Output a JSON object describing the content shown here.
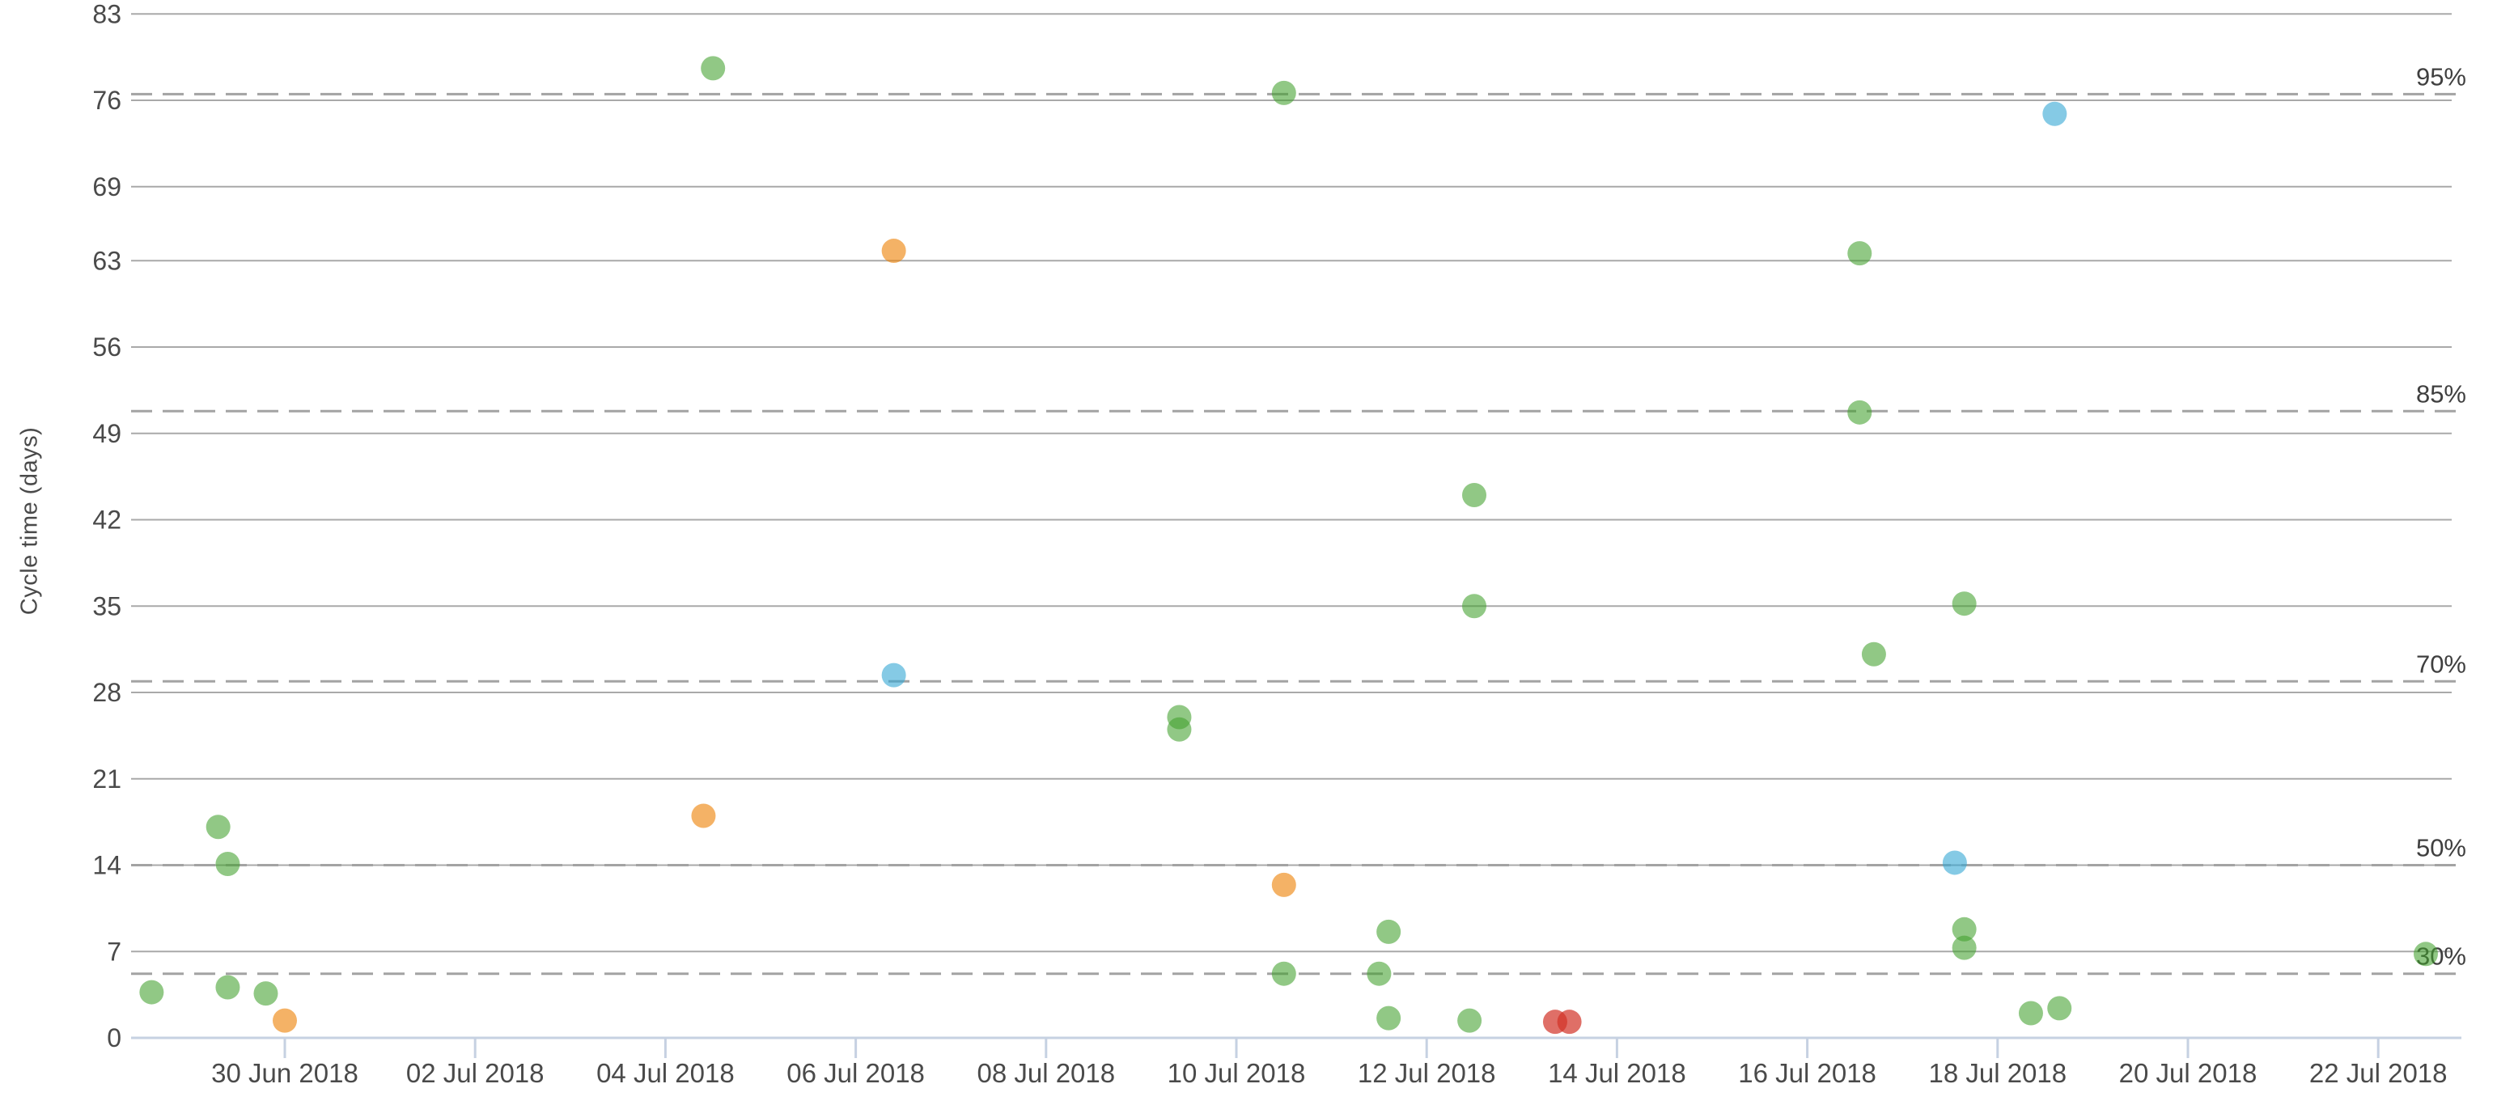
{
  "chart_data": {
    "type": "scatter",
    "title": "",
    "xlabel": "",
    "ylabel": "Cycle time (days)",
    "x_axis_note": "dates; point x given as decimal days after 30 Jun 2018",
    "y_ticks": [
      0,
      7,
      14,
      21,
      28,
      35,
      42,
      49,
      56,
      63,
      69,
      76,
      83
    ],
    "ylim": [
      0,
      83
    ],
    "xlim_days": [
      -1.65,
      22.8
    ],
    "grid": "horizontal-only",
    "legend_position": "none",
    "x_ticks": [
      {
        "label": "30 Jun 2018",
        "day": 0
      },
      {
        "label": "02 Jul 2018",
        "day": 2
      },
      {
        "label": "04 Jul 2018",
        "day": 4
      },
      {
        "label": "06 Jul 2018",
        "day": 6
      },
      {
        "label": "08 Jul 2018",
        "day": 8
      },
      {
        "label": "10 Jul 2018",
        "day": 10
      },
      {
        "label": "12 Jul 2018",
        "day": 12
      },
      {
        "label": "14 Jul 2018",
        "day": 14
      },
      {
        "label": "16 Jul 2018",
        "day": 16
      },
      {
        "label": "18 Jul 2018",
        "day": 18
      },
      {
        "label": "20 Jul 2018",
        "day": 20
      },
      {
        "label": "22 Jul 2018",
        "day": 22
      }
    ],
    "percentiles": [
      {
        "label": "95%",
        "value": 76.5
      },
      {
        "label": "85%",
        "value": 50.8
      },
      {
        "label": "70%",
        "value": 28.9
      },
      {
        "label": "50%",
        "value": 14.0
      },
      {
        "label": "30%",
        "value": 5.2
      }
    ],
    "series": [
      {
        "name": "green",
        "color": "#42A12D",
        "opacity": 0.58,
        "points": [
          {
            "day": -1.4,
            "value": 3.7
          },
          {
            "day": -0.7,
            "value": 17.1
          },
          {
            "day": -0.6,
            "value": 14.1
          },
          {
            "day": -0.6,
            "value": 4.1
          },
          {
            "day": -0.2,
            "value": 3.6
          },
          {
            "day": 4.5,
            "value": 78.6
          },
          {
            "day": 9.4,
            "value": 26.0
          },
          {
            "day": 9.4,
            "value": 25.0
          },
          {
            "day": 10.5,
            "value": 76.6
          },
          {
            "day": 10.5,
            "value": 5.2
          },
          {
            "day": 11.5,
            "value": 5.2
          },
          {
            "day": 11.6,
            "value": 8.6
          },
          {
            "day": 11.6,
            "value": 1.6
          },
          {
            "day": 12.45,
            "value": 1.4
          },
          {
            "day": 12.5,
            "value": 44.0
          },
          {
            "day": 12.5,
            "value": 35.0
          },
          {
            "day": 16.55,
            "value": 63.6
          },
          {
            "day": 16.55,
            "value": 50.7
          },
          {
            "day": 16.7,
            "value": 31.1
          },
          {
            "day": 17.65,
            "value": 35.2
          },
          {
            "day": 17.65,
            "value": 8.8
          },
          {
            "day": 17.65,
            "value": 7.3
          },
          {
            "day": 18.35,
            "value": 2.0
          },
          {
            "day": 18.65,
            "value": 2.4
          },
          {
            "day": 22.5,
            "value": 6.8
          }
        ]
      },
      {
        "name": "orange",
        "color": "#ED8308",
        "opacity": 0.62,
        "points": [
          {
            "day": 0.0,
            "value": 1.4
          },
          {
            "day": 4.4,
            "value": 18.0
          },
          {
            "day": 6.4,
            "value": 63.8
          },
          {
            "day": 10.5,
            "value": 12.4
          }
        ]
      },
      {
        "name": "blue",
        "color": "#34A6D3",
        "opacity": 0.6,
        "points": [
          {
            "day": 6.4,
            "value": 29.4
          },
          {
            "day": 17.55,
            "value": 14.2
          },
          {
            "day": 18.6,
            "value": 74.9
          }
        ]
      },
      {
        "name": "red",
        "color": "#D23227",
        "opacity": 0.7,
        "points": [
          {
            "day": 13.35,
            "value": 1.3
          },
          {
            "day": 13.5,
            "value": 1.3
          }
        ]
      }
    ],
    "layout": {
      "x0": 352,
      "x_step": 117.6,
      "y0": 1283,
      "y_step": 15.25,
      "grid_x1": 162,
      "grid_x2": 3030,
      "y_label_x": 150,
      "pct_label_x": 3048,
      "axis_y": 1283,
      "tick_len": 25,
      "x_label_y": 1338,
      "point_radius": 15
    },
    "colors": {
      "gridline": "#a9a9a9",
      "percentile_line": "#a3a3a3",
      "axis_line": "#c6d1e2",
      "tick_text": "#4a4a4a",
      "percent_text": "#3f3f3f"
    }
  }
}
